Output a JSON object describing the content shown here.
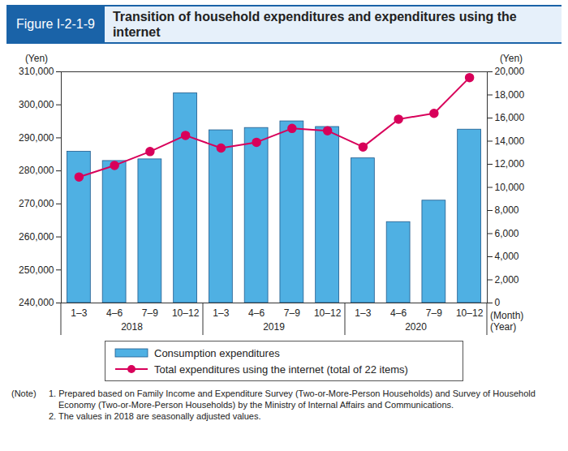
{
  "chart_data": {
    "type": "bar",
    "figure_label": "Figure I-2-1-9",
    "title": "Transition of household expenditures and expenditures using the internet",
    "categories": [
      "1–3",
      "4–6",
      "7–9",
      "10–12",
      "1–3",
      "4–6",
      "7–9",
      "10–12",
      "1–3",
      "4–6",
      "7–9",
      "10–12"
    ],
    "category_groups": [
      "2018",
      "2018",
      "2018",
      "2018",
      "2019",
      "2019",
      "2019",
      "2019",
      "2020",
      "2020",
      "2020",
      "2020"
    ],
    "x_label": "(Month)",
    "group_label": "(Year)",
    "y_label": "(Yen)",
    "y2_label": "(Yen)",
    "ylim": [
      240000,
      310000
    ],
    "yticks": [
      {
        "value": 240000,
        "label": "240,000"
      },
      {
        "value": 250000,
        "label": "250,000"
      },
      {
        "value": 260000,
        "label": "260,000"
      },
      {
        "value": 270000,
        "label": "270,000"
      },
      {
        "value": 280000,
        "label": "280,000"
      },
      {
        "value": 290000,
        "label": "290,000"
      },
      {
        "value": 300000,
        "label": "300,000"
      },
      {
        "value": 310000,
        "label": "310,000"
      }
    ],
    "y2lim": [
      0,
      20000
    ],
    "y2ticks": [
      0,
      {
        "value": 2000,
        "label": "2,000"
      },
      {
        "value": 4000,
        "label": "4,000"
      },
      {
        "value": 6000,
        "label": "6,000"
      },
      {
        "value": 8000,
        "label": "8,000"
      },
      {
        "value": 10000,
        "label": "10,000"
      },
      {
        "value": 12000,
        "label": "12,000"
      },
      {
        "value": 14000,
        "label": "14,000"
      },
      {
        "value": 16000,
        "label": "16,000"
      },
      {
        "value": 18000,
        "label": "18,000"
      },
      {
        "value": 20000,
        "label": "20,000"
      }
    ],
    "grid": false,
    "legend": "bottom",
    "series": [
      {
        "name": "Consumption expenditures",
        "type": "bar",
        "color": "#4fb0e3",
        "values": [
          285800,
          283000,
          283500,
          303500,
          292300,
          293000,
          295000,
          293300,
          283800,
          264500,
          271000,
          292500
        ]
      },
      {
        "name": "Total expenditures using the internet (total of 22 items)",
        "type": "line",
        "axis": "y2",
        "color": "#d8005a",
        "marker": "circle",
        "values": [
          10900,
          11900,
          13100,
          14500,
          13400,
          13900,
          15100,
          14900,
          13500,
          15900,
          16400,
          19500
        ]
      }
    ],
    "notes_label": "(Note)",
    "notes": [
      "1. Prepared based on Family Income and Expenditure Survey (Two-or-More-Person Households) and Survey of Household Economy (Two-or-More-Person Households) by the Ministry of Internal Affairs and Communications.",
      "2. The values in 2018 are seasonally adjusted values."
    ]
  }
}
